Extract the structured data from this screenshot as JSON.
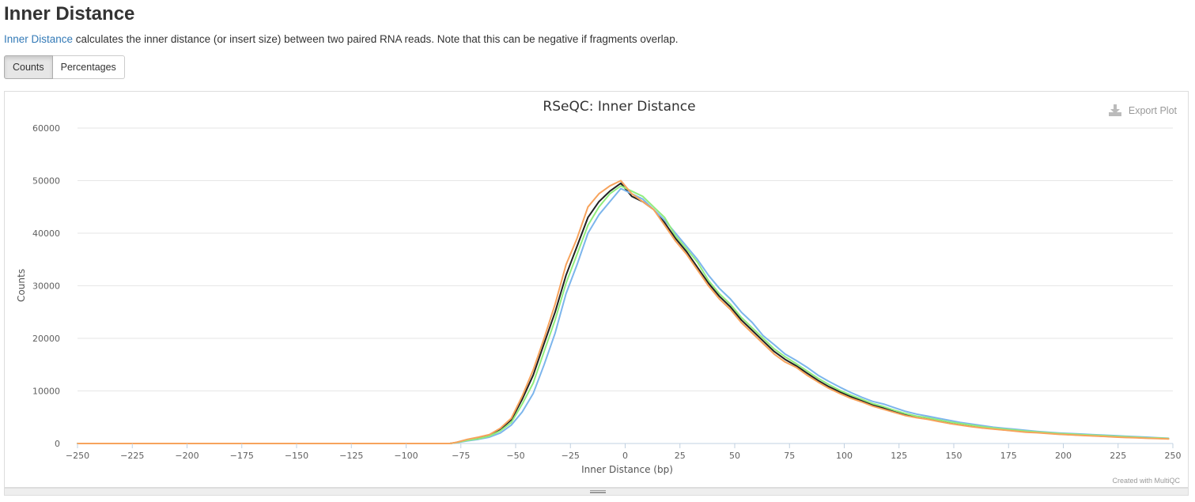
{
  "section": {
    "title": "Inner Distance",
    "description_link": "Inner Distance",
    "description_text": " calculates the inner distance (or insert size) between two paired RNA reads. Note that this can be negative if fragments overlap."
  },
  "toggle": {
    "counts_label": "Counts",
    "percentages_label": "Percentages",
    "active": "Counts"
  },
  "export_label": "Export Plot",
  "credit": "Created with MultiQC",
  "chart_data": {
    "type": "line",
    "title": "RSeQC: Inner Distance",
    "xlabel": "Inner Distance (bp)",
    "ylabel": "Counts",
    "xlim": [
      -250,
      250
    ],
    "ylim": [
      0,
      60000
    ],
    "x_ticks": [
      -250,
      -225,
      -200,
      -175,
      -150,
      -125,
      -100,
      -75,
      -50,
      -25,
      0,
      25,
      50,
      75,
      100,
      125,
      150,
      175,
      200,
      225,
      250
    ],
    "x_tick_labels": [
      "−250",
      "−225",
      "−200",
      "−175",
      "−150",
      "−125",
      "−100",
      "−75",
      "−50",
      "−25",
      "0",
      "25",
      "50",
      "75",
      "100",
      "125",
      "150",
      "175",
      "200",
      "225",
      "250"
    ],
    "y_ticks": [
      0,
      10000,
      20000,
      30000,
      40000,
      50000,
      60000
    ],
    "y_tick_labels": [
      "0",
      "10000",
      "20000",
      "30000",
      "40000",
      "50000",
      "60000"
    ],
    "grid": true,
    "legend": "none",
    "x": [
      -250,
      -80,
      -77,
      -72,
      -67,
      -62,
      -57,
      -52,
      -47,
      -42,
      -37,
      -32,
      -27,
      -22,
      -17,
      -12,
      -7,
      -2,
      3,
      8,
      13,
      18,
      23,
      28,
      33,
      38,
      43,
      48,
      53,
      58,
      63,
      68,
      73,
      78,
      83,
      88,
      93,
      98,
      103,
      108,
      113,
      118,
      123,
      128,
      133,
      138,
      143,
      148,
      153,
      158,
      163,
      168,
      173,
      178,
      183,
      188,
      193,
      198,
      203,
      208,
      213,
      218,
      223,
      228,
      233,
      238,
      243,
      248
    ],
    "series": [
      {
        "color": "#222222",
        "values": [
          0,
          0,
          200,
          700,
          1100,
          1600,
          2700,
          4500,
          8400,
          13000,
          19000,
          25000,
          32000,
          37500,
          43000,
          46000,
          48000,
          49500,
          47000,
          46000,
          44500,
          42000,
          39000,
          36500,
          33500,
          30500,
          28000,
          26000,
          23500,
          21500,
          19500,
          17500,
          16000,
          14800,
          13400,
          12000,
          10800,
          9800,
          8900,
          8100,
          7300,
          6700,
          6000,
          5400,
          5000,
          4700,
          4300,
          3900,
          3600,
          3300,
          3000,
          2800,
          2600,
          2400,
          2200,
          2100,
          1950,
          1800,
          1700,
          1600,
          1500,
          1400,
          1300,
          1200,
          1150,
          1050,
          1000,
          900
        ]
      },
      {
        "color": "#7cb5ec",
        "values": [
          0,
          0,
          150,
          500,
          800,
          1200,
          2000,
          3500,
          6000,
          9500,
          15000,
          21000,
          28500,
          34000,
          40000,
          43500,
          46000,
          48500,
          47500,
          46500,
          44500,
          42500,
          40000,
          37500,
          35000,
          32000,
          29500,
          27500,
          25000,
          23000,
          20500,
          18800,
          17000,
          15800,
          14500,
          13000,
          11800,
          10700,
          9700,
          8800,
          8000,
          7500,
          6800,
          6100,
          5600,
          5200,
          4800,
          4400,
          4000,
          3700,
          3400,
          3100,
          2900,
          2700,
          2500,
          2300,
          2150,
          2000,
          1900,
          1800,
          1700,
          1600,
          1500,
          1400,
          1300,
          1200,
          1100,
          1000
        ]
      },
      {
        "color": "#90ed7d",
        "values": [
          0,
          0,
          180,
          600,
          900,
          1400,
          2400,
          4000,
          7500,
          11500,
          17500,
          23500,
          30500,
          36000,
          41500,
          45000,
          47500,
          49000,
          48000,
          47000,
          45000,
          43000,
          39500,
          37000,
          34500,
          31000,
          28500,
          26500,
          24000,
          22000,
          20000,
          18000,
          16500,
          15200,
          13800,
          12400,
          11200,
          10100,
          9200,
          8400,
          7600,
          7000,
          6300,
          5700,
          5200,
          4900,
          4500,
          4100,
          3800,
          3500,
          3200,
          2950,
          2750,
          2550,
          2350,
          2200,
          2050,
          1900,
          1800,
          1700,
          1600,
          1500,
          1400,
          1300,
          1200,
          1100,
          1050,
          950
        ]
      },
      {
        "color": "#f7a35c",
        "values": [
          0,
          0,
          220,
          800,
          1200,
          1700,
          2900,
          4800,
          9000,
          14000,
          20000,
          26500,
          34000,
          39000,
          45000,
          47500,
          49000,
          50000,
          47500,
          46000,
          44500,
          41500,
          38500,
          36000,
          33000,
          30000,
          27500,
          25500,
          23000,
          21000,
          19000,
          17000,
          15500,
          14500,
          13000,
          11700,
          10500,
          9500,
          8600,
          7900,
          7100,
          6500,
          5900,
          5300,
          4900,
          4600,
          4200,
          3800,
          3500,
          3200,
          2950,
          2750,
          2550,
          2350,
          2150,
          2050,
          1900,
          1750,
          1650,
          1550,
          1450,
          1350,
          1250,
          1150,
          1100,
          1000,
          950,
          850
        ]
      }
    ]
  }
}
